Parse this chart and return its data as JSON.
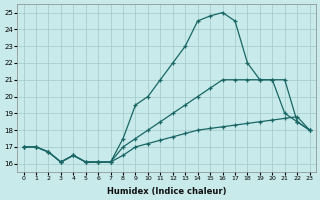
{
  "xlabel": "Humidex (Indice chaleur)",
  "bg_color": "#c8eaea",
  "grid_color": "#a0c8c8",
  "line_color": "#1a6666",
  "xlim": [
    -0.5,
    23.5
  ],
  "ylim": [
    15.5,
    25.5
  ],
  "xticks": [
    0,
    1,
    2,
    3,
    4,
    5,
    6,
    7,
    8,
    9,
    10,
    11,
    12,
    13,
    14,
    15,
    16,
    17,
    18,
    19,
    20,
    21,
    22,
    23
  ],
  "yticks": [
    16,
    17,
    18,
    19,
    20,
    21,
    22,
    23,
    24,
    25
  ],
  "series": [
    {
      "x": [
        0,
        1,
        2,
        3,
        4,
        5,
        6,
        7,
        8,
        9,
        10,
        11,
        12,
        13,
        14,
        15,
        16,
        17,
        18,
        19,
        20,
        21,
        22,
        23
      ],
      "y": [
        17,
        17,
        16.7,
        16.1,
        16.5,
        16.1,
        16.1,
        16.1,
        16.5,
        17.0,
        17.2,
        17.4,
        17.6,
        17.8,
        18.0,
        18.1,
        18.2,
        18.3,
        18.4,
        18.5,
        18.6,
        18.7,
        18.8,
        18.0
      ]
    },
    {
      "x": [
        0,
        1,
        2,
        3,
        4,
        5,
        6,
        7,
        8,
        9,
        10,
        11,
        12,
        13,
        14,
        15,
        16,
        17,
        18,
        19,
        20,
        21,
        22,
        23
      ],
      "y": [
        17,
        17,
        16.7,
        16.1,
        16.5,
        16.1,
        16.1,
        16.1,
        17.0,
        17.5,
        18.0,
        18.5,
        19.0,
        19.5,
        20.0,
        20.5,
        21.0,
        21.0,
        21.0,
        21.0,
        21.0,
        21.0,
        18.5,
        18.0
      ]
    },
    {
      "x": [
        0,
        1,
        2,
        3,
        4,
        5,
        6,
        7,
        8,
        9,
        10,
        11,
        12,
        13,
        14,
        15,
        16,
        17,
        18,
        19,
        20,
        21,
        22,
        23
      ],
      "y": [
        17,
        17,
        16.7,
        16.1,
        16.5,
        16.1,
        16.1,
        16.1,
        17.5,
        19.5,
        20.0,
        21.0,
        22.0,
        23.0,
        24.5,
        24.8,
        25.0,
        24.5,
        22.0,
        21.0,
        21.0,
        19.0,
        18.5,
        18.0
      ]
    }
  ]
}
